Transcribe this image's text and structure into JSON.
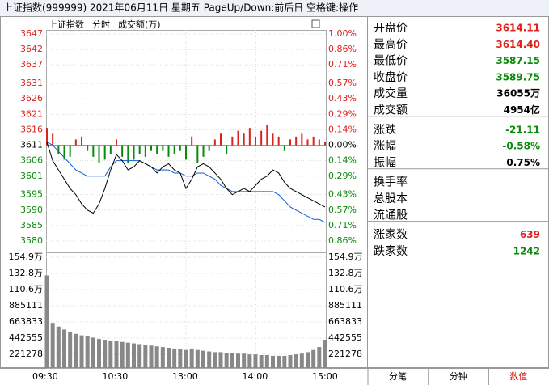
{
  "header": {
    "title": "上证指数(999999) 2021年06月11日 星期五 PageUp/Down:前后日 空格键:操作"
  },
  "chart": {
    "caption": [
      "上证指数",
      "分时",
      "成交额(万)"
    ],
    "ylim": [
      3580,
      3647
    ],
    "price_ticks": [
      3647,
      3642,
      3637,
      3631,
      3626,
      3621,
      3616,
      3611,
      3606,
      3601,
      3595,
      3590,
      3585,
      3580
    ],
    "pct_labels": [
      "1.00%",
      "0.86%",
      "0.71%",
      "0.57%",
      "0.43%",
      "0.29%",
      "0.14%",
      "0.00%",
      "0.14%",
      "0.29%",
      "0.43%",
      "0.57%",
      "0.71%",
      "0.86%"
    ],
    "price": [
      3612,
      3606,
      3603,
      3600,
      3597,
      3595,
      3592,
      3590,
      3589,
      3592,
      3597,
      3603,
      3608,
      3606,
      3603,
      3604,
      3606,
      3605,
      3604,
      3602,
      3604,
      3605,
      3603,
      3602,
      3597,
      3600,
      3604,
      3605,
      3604,
      3602,
      3600,
      3597,
      3595,
      3596,
      3597,
      3596,
      3598,
      3600,
      3601,
      3603,
      3602,
      3599,
      3597,
      3596,
      3595,
      3594,
      3593,
      3592,
      3591
    ],
    "average": [
      3612,
      3611,
      3609,
      3607,
      3605,
      3603,
      3602,
      3601,
      3601,
      3601,
      3601,
      3604,
      3606,
      3606,
      3606,
      3606,
      3606,
      3605,
      3604,
      3603,
      3603,
      3603,
      3602,
      3602,
      3601,
      3601,
      3602,
      3602,
      3601,
      3600,
      3598,
      3597,
      3596,
      3596,
      3596,
      3596,
      3596,
      3596,
      3596,
      3596,
      3595,
      3593,
      3591,
      3590,
      3589,
      3588,
      3587,
      3587,
      3586
    ],
    "breadth": [
      6,
      4,
      -3,
      -5,
      -4,
      2,
      3,
      -2,
      -4,
      -6,
      -5,
      -3,
      2,
      -4,
      -6,
      -5,
      -3,
      -4,
      -2,
      -3,
      -2,
      -4,
      -3,
      -2,
      -5,
      3,
      -6,
      -4,
      -2,
      2,
      4,
      -3,
      3,
      5,
      4,
      6,
      3,
      5,
      7,
      4,
      3,
      -2,
      2,
      3,
      4,
      2,
      3,
      2,
      1
    ],
    "vlim": [
      0,
      1549000
    ],
    "volume_ticks": [
      {
        "value": 1549000,
        "label": "154.9万"
      },
      {
        "value": 1328000,
        "label": "132.8万"
      },
      {
        "value": 1106000,
        "label": "110.6万"
      },
      885111,
      663833,
      442555,
      221278
    ],
    "volume": [
      1300000,
      650000,
      600000,
      560000,
      520000,
      500000,
      480000,
      470000,
      450000,
      430000,
      420000,
      410000,
      400000,
      390000,
      380000,
      370000,
      360000,
      350000,
      340000,
      330000,
      320000,
      310000,
      300000,
      290000,
      280000,
      300000,
      280000,
      270000,
      260000,
      250000,
      250000,
      240000,
      240000,
      230000,
      230000,
      220000,
      220000,
      210000,
      210000,
      200000,
      200000,
      200000,
      210000,
      220000,
      230000,
      250000,
      280000,
      320000,
      420000
    ],
    "time_labels": [
      "09:30",
      "10:30",
      "13:00",
      "14:00",
      "15:00"
    ]
  },
  "panel": {
    "groups": [
      [
        {
          "label": "开盘价",
          "value": "3614.11",
          "tone": "up"
        },
        {
          "label": "最高价",
          "value": "3614.40",
          "tone": "up"
        },
        {
          "label": "最低价",
          "value": "3587.15",
          "tone": "down"
        },
        {
          "label": "收盘价",
          "value": "3589.75",
          "tone": "down"
        },
        {
          "label": "成交量",
          "value": "36055万",
          "tone": "flat"
        },
        {
          "label": "成交额",
          "value": "4954亿",
          "tone": "flat"
        }
      ],
      [
        {
          "label": "涨跌",
          "value": "-21.11",
          "tone": "down"
        },
        {
          "label": "涨幅",
          "value": "-0.58%",
          "tone": "down"
        },
        {
          "label": "振幅",
          "value": "0.75%",
          "tone": "flat"
        }
      ],
      [
        {
          "label": "换手率"
        },
        {
          "label": "总股本"
        },
        {
          "label": "流通股"
        }
      ],
      [
        {
          "label": "涨家数",
          "value": "639",
          "tone": "up"
        },
        {
          "label": "跌家数",
          "value": "1242",
          "tone": "down"
        }
      ]
    ]
  },
  "tabs": [
    "分笔",
    "分钟",
    "数值"
  ]
}
